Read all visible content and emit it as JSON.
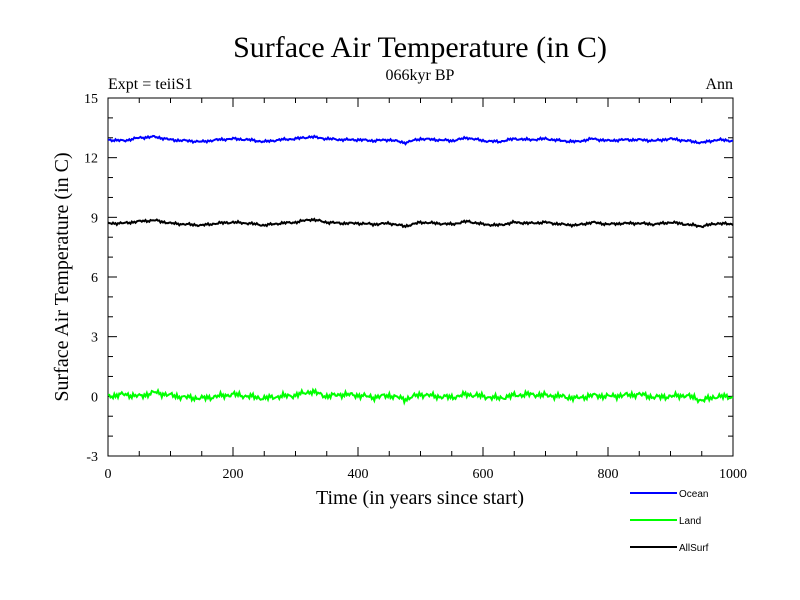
{
  "chart_data": {
    "type": "line",
    "title": "Surface Air Temperature (in C)",
    "subtitle": "066kyr BP",
    "left_label": "Expt = teiiS1",
    "right_label": "Ann",
    "xlabel": "Time (in years since start)",
    "ylabel": "Surface Air Temperature (in C)",
    "xlim": [
      0,
      1000
    ],
    "ylim": [
      -3,
      15
    ],
    "xticks": [
      "0",
      "200",
      "400",
      "600",
      "800",
      "1000"
    ],
    "yticks": [
      "-3",
      "0",
      "3",
      "6",
      "9",
      "12",
      "15"
    ],
    "grid": false,
    "legend_position": "bottom-right",
    "series": [
      {
        "name": "Ocean",
        "color": "#0000ff",
        "x": [
          0,
          25,
          50,
          75,
          100,
          125,
          150,
          175,
          200,
          225,
          250,
          275,
          300,
          325,
          350,
          375,
          400,
          425,
          450,
          475,
          500,
          525,
          550,
          575,
          600,
          625,
          650,
          675,
          700,
          725,
          750,
          775,
          800,
          825,
          850,
          875,
          900,
          925,
          950,
          975,
          1000
        ],
        "y": [
          12.9,
          12.85,
          13.0,
          13.05,
          12.9,
          12.85,
          12.8,
          12.9,
          12.95,
          12.9,
          12.8,
          12.9,
          12.95,
          13.05,
          12.95,
          12.9,
          12.9,
          12.85,
          12.9,
          12.75,
          12.95,
          12.9,
          12.85,
          13.0,
          12.85,
          12.8,
          12.95,
          12.9,
          12.95,
          12.85,
          12.8,
          12.95,
          12.85,
          12.9,
          12.9,
          12.85,
          12.95,
          12.85,
          12.75,
          12.9,
          12.85
        ]
      },
      {
        "name": "Land",
        "color": "#00ff00",
        "x": [
          0,
          25,
          50,
          75,
          100,
          125,
          150,
          175,
          200,
          225,
          250,
          275,
          300,
          325,
          350,
          375,
          400,
          425,
          450,
          475,
          500,
          525,
          550,
          575,
          600,
          625,
          650,
          675,
          700,
          725,
          750,
          775,
          800,
          825,
          850,
          875,
          900,
          925,
          950,
          975,
          1000
        ],
        "y": [
          0.0,
          0.1,
          0.0,
          0.2,
          0.05,
          -0.05,
          -0.1,
          0.0,
          0.1,
          0.0,
          -0.1,
          0.0,
          0.05,
          0.25,
          0.0,
          0.1,
          0.05,
          -0.05,
          0.05,
          -0.15,
          0.1,
          0.0,
          -0.05,
          0.1,
          0.0,
          -0.1,
          0.05,
          0.1,
          0.05,
          0.0,
          -0.1,
          0.05,
          0.0,
          0.05,
          0.1,
          -0.05,
          0.0,
          0.05,
          -0.2,
          0.0,
          -0.05
        ]
      },
      {
        "name": "AllSurf",
        "color": "#000000",
        "x": [
          0,
          25,
          50,
          75,
          100,
          125,
          150,
          175,
          200,
          225,
          250,
          275,
          300,
          325,
          350,
          375,
          400,
          425,
          450,
          475,
          500,
          525,
          550,
          575,
          600,
          625,
          650,
          675,
          700,
          725,
          750,
          775,
          800,
          825,
          850,
          875,
          900,
          925,
          950,
          975,
          1000
        ],
        "y": [
          8.7,
          8.7,
          8.8,
          8.85,
          8.7,
          8.65,
          8.6,
          8.7,
          8.75,
          8.7,
          8.6,
          8.7,
          8.75,
          8.9,
          8.75,
          8.7,
          8.7,
          8.65,
          8.7,
          8.55,
          8.75,
          8.7,
          8.65,
          8.8,
          8.65,
          8.6,
          8.75,
          8.7,
          8.75,
          8.65,
          8.6,
          8.75,
          8.65,
          8.7,
          8.7,
          8.65,
          8.75,
          8.65,
          8.55,
          8.7,
          8.65
        ]
      }
    ]
  }
}
